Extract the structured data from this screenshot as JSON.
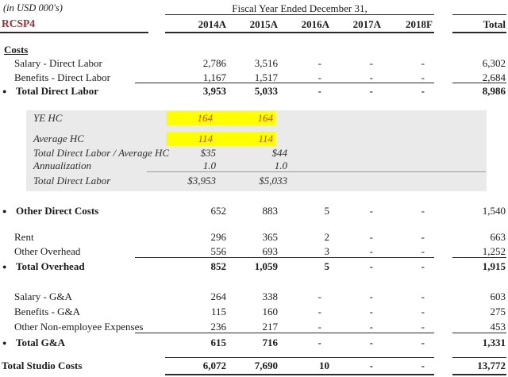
{
  "header": {
    "units_note": "(in USD 000's)",
    "sheet_code": "RCSP4",
    "period_label": "Fiscal Year Ended December 31,",
    "columns": [
      "2014A",
      "2015A",
      "2016A",
      "2017A",
      "2018F"
    ],
    "total_label": "Total"
  },
  "colors": {
    "accent_red": "#9c2f33",
    "highlight_yellow": "#ffff00",
    "highlight_number_text": "#bd5017",
    "memo_band_gray": "#eaeaea"
  },
  "rows": [
    {
      "label": "Costs",
      "type": "section",
      "bullet": false,
      "values": [],
      "total": ""
    },
    {
      "label": "Salary - Direct Labor",
      "type": "detail",
      "bullet": false,
      "values": [
        "2,786",
        "3,516",
        "-",
        "-",
        "-"
      ],
      "total": "6,302"
    },
    {
      "label": "Benefits - Direct Labor",
      "type": "detail",
      "bullet": false,
      "values": [
        "1,167",
        "1,517",
        "-",
        "-",
        "-"
      ],
      "total": "2,684"
    },
    {
      "label": "Total Direct Labor",
      "type": "total",
      "bullet": true,
      "values": [
        "3,953",
        "5,033",
        "-",
        "-",
        "-"
      ],
      "total": "8,986"
    },
    {
      "label": "YE HC",
      "type": "memo_hl",
      "bullet": false,
      "values": [
        "164",
        "164"
      ],
      "total": ""
    },
    {
      "label": "Average HC",
      "type": "memo_hl",
      "bullet": false,
      "values": [
        "114",
        "114"
      ],
      "total": ""
    },
    {
      "label": "Total Direct Labor / Average HC",
      "type": "memo",
      "bullet": false,
      "values": [
        "$35",
        "$44"
      ],
      "total": ""
    },
    {
      "label": "Annualization",
      "type": "memo",
      "bullet": false,
      "values": [
        "1.0",
        "1.0"
      ],
      "total": ""
    },
    {
      "label": "Total Direct Labor",
      "type": "memo",
      "bullet": false,
      "values": [
        "$3,953",
        "$5,033"
      ],
      "total": ""
    },
    {
      "label": "Other Direct Costs",
      "type": "headline",
      "bullet": true,
      "values": [
        "652",
        "883",
        "5",
        "-",
        "-"
      ],
      "total": "1,540"
    },
    {
      "label": "Rent",
      "type": "detail",
      "bullet": false,
      "values": [
        "296",
        "365",
        "2",
        "-",
        "-"
      ],
      "total": "663"
    },
    {
      "label": "Other Overhead",
      "type": "detail",
      "bullet": false,
      "values": [
        "556",
        "693",
        "3",
        "-",
        "-"
      ],
      "total": "1,252"
    },
    {
      "label": "Total Overhead",
      "type": "total",
      "bullet": true,
      "values": [
        "852",
        "1,059",
        "5",
        "-",
        "-"
      ],
      "total": "1,915"
    },
    {
      "label": "Salary - G&A",
      "type": "detail",
      "bullet": false,
      "values": [
        "264",
        "338",
        "-",
        "-",
        "-"
      ],
      "total": "603"
    },
    {
      "label": "Benefits - G&A",
      "type": "detail",
      "bullet": false,
      "values": [
        "115",
        "160",
        "-",
        "-",
        "-"
      ],
      "total": "275"
    },
    {
      "label": "Other Non-employee Expenses",
      "type": "detail",
      "bullet": false,
      "values": [
        "236",
        "217",
        "-",
        "-",
        "-"
      ],
      "total": "453"
    },
    {
      "label": "Total G&A",
      "type": "total",
      "bullet": true,
      "values": [
        "615",
        "716",
        "-",
        "-",
        "-"
      ],
      "total": "1,331"
    },
    {
      "label": "Total Studio Costs",
      "type": "grand",
      "bullet": false,
      "values": [
        "6,072",
        "7,690",
        "10",
        "-",
        "-"
      ],
      "total": "13,772"
    }
  ]
}
